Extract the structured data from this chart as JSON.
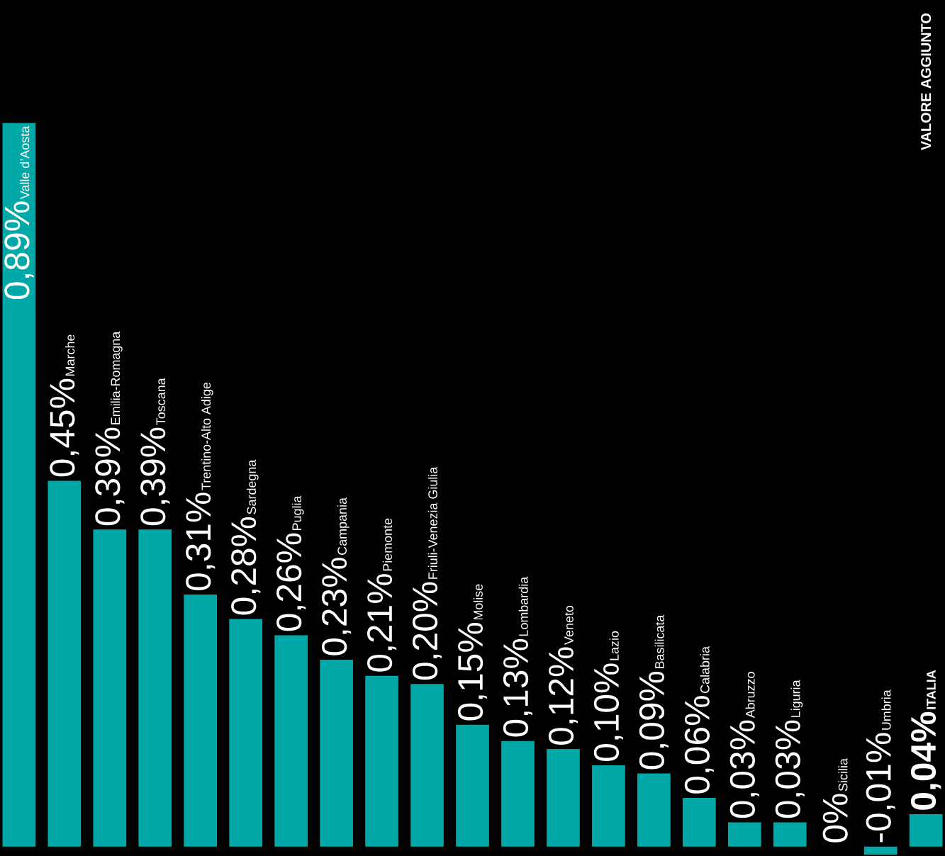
{
  "chart_data": {
    "type": "bar",
    "title": "VALORE AGGIUNTO",
    "color": "#00a8a8",
    "categories": [
      "Valle d’Aosta",
      "Marche",
      "Emilia-Romagna",
      "Toscana",
      "Trentino-Alto Adige",
      "Sardegna",
      "Puglia",
      "Campania",
      "Piemonte",
      "Friuli-Venezia Giulia",
      "Molise",
      "Lombardia",
      "Veneto",
      "Lazio",
      "Basilicata",
      "Calabria",
      "Abruzzo",
      "Liguria",
      "Sicilia",
      "Umbria",
      "ITALIA"
    ],
    "values": [
      0.89,
      0.45,
      0.39,
      0.39,
      0.31,
      0.28,
      0.26,
      0.23,
      0.21,
      0.2,
      0.15,
      0.13,
      0.12,
      0.1,
      0.09,
      0.06,
      0.03,
      0.03,
      0,
      -0.01,
      0.04
    ],
    "value_labels": [
      "0,89%",
      "0,45%",
      "0,39%",
      "0,39%",
      "0,31%",
      "0,28%",
      "0,26%",
      "0,23%",
      "0,21%",
      "0,20%",
      "0,15%",
      "0,13%",
      "0,12%",
      "0,10%",
      "0,09%",
      "0,06%",
      "0,03%",
      "0,03%",
      "0%",
      "-0,01%",
      "0,04%"
    ]
  }
}
